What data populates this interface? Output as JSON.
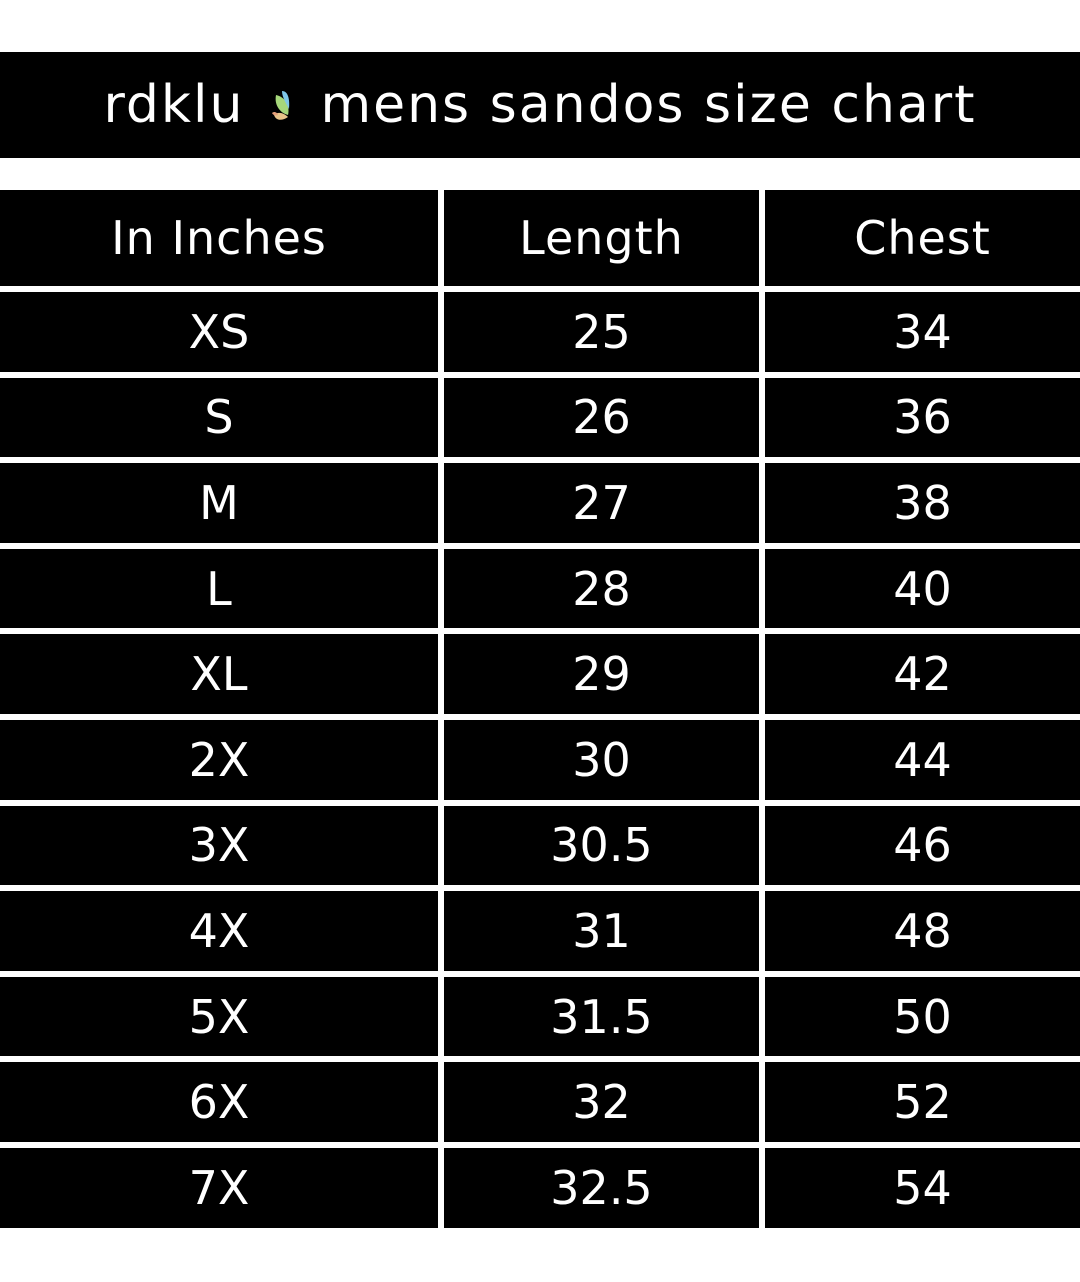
{
  "title": {
    "brand": "rdklu",
    "text": "mens sandos size chart",
    "logo": "butterfly-logo"
  },
  "table": {
    "headers": [
      "In Inches",
      "Length",
      "Chest"
    ],
    "rows": [
      [
        "XS",
        "25",
        "34"
      ],
      [
        "S",
        "26",
        "36"
      ],
      [
        "M",
        "27",
        "38"
      ],
      [
        "L",
        "28",
        "40"
      ],
      [
        "XL",
        "29",
        "42"
      ],
      [
        "2X",
        "30",
        "44"
      ],
      [
        "3X",
        "30.5",
        "46"
      ],
      [
        "4X",
        "31",
        "48"
      ],
      [
        "5X",
        "31.5",
        "50"
      ],
      [
        "6X",
        "32",
        "52"
      ],
      [
        "7X",
        "32.5",
        "54"
      ]
    ]
  },
  "colors": {
    "background": "#000000",
    "text": "#ffffff",
    "divider": "#ffffff"
  }
}
